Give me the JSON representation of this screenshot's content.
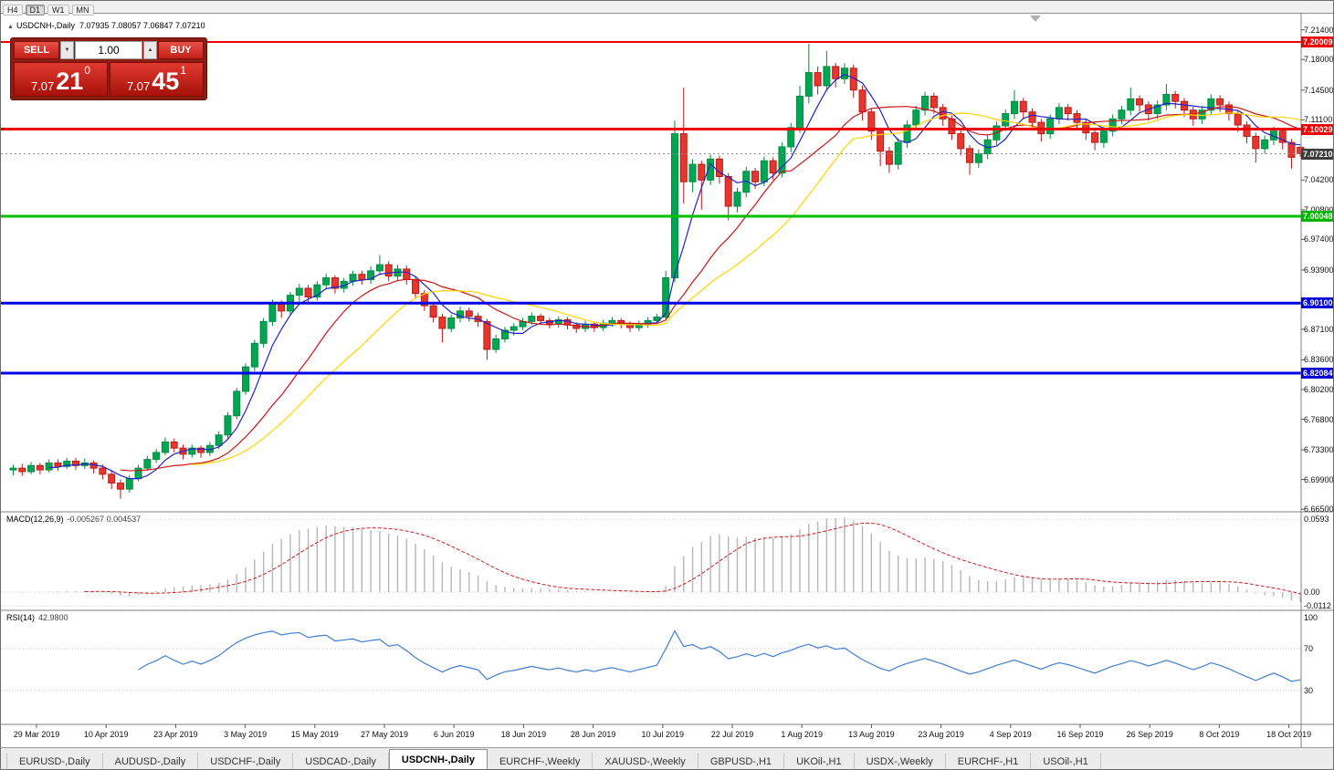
{
  "toolbar": {
    "buttons": [
      "H4",
      "D1",
      "W1",
      "MN"
    ],
    "active": "D1"
  },
  "chart_header": {
    "marker": "▲",
    "symbol": "USDCNH-,Daily",
    "ohlc": "7.07935 7.08057 7.06847 7.07210"
  },
  "trade_panel": {
    "sell_label": "SELL",
    "buy_label": "BUY",
    "volume": "1.00",
    "sell_price": {
      "big": "7.07",
      "pips": "21",
      "point": "0"
    },
    "buy_price": {
      "big": "7.07",
      "pips": "45",
      "point": "1"
    }
  },
  "price_axis": {
    "labels": [
      "7.21400",
      "7.18000",
      "7.14500",
      "7.11100",
      "7.04200",
      "7.00800",
      "6.97400",
      "6.93900",
      "6.87100",
      "6.83600",
      "6.80200",
      "6.76800",
      "6.73300",
      "6.69900",
      "6.66500"
    ],
    "badges": [
      {
        "text": "7.20009",
        "price": 7.20009,
        "color": "#ee0000"
      },
      {
        "text": "7.10029",
        "price": 7.10029,
        "color": "#ee0000"
      },
      {
        "text": "7.07210",
        "price": 7.0721,
        "color": "#3c3c3c"
      },
      {
        "text": "7.00048",
        "price": 7.00048,
        "color": "#00b400"
      },
      {
        "text": "6.90100",
        "price": 6.901,
        "color": "#0202d6"
      },
      {
        "text": "6.82084",
        "price": 6.82084,
        "color": "#0202d6"
      }
    ]
  },
  "macd_panel": {
    "name": "MACD(12,26,9)",
    "values": "-0.005267 0.004537",
    "scale": [
      {
        "text": "0.0593",
        "value": 0.0593
      },
      {
        "text": "0.00",
        "value": 0
      },
      {
        "text": "-0.0112",
        "value": -0.0112
      }
    ]
  },
  "rsi_panel": {
    "name": "RSI(14)",
    "value": "42.9800",
    "scale": [
      {
        "text": "100",
        "value": 100
      },
      {
        "text": "70",
        "value": 70
      },
      {
        "text": "30",
        "value": 30
      }
    ]
  },
  "date_axis": {
    "labels": [
      "29 Mar 2019",
      "10 Apr 2019",
      "23 Apr 2019",
      "3 May 2019",
      "15 May 2019",
      "27 May 2019",
      "6 Jun 2019",
      "18 Jun 2019",
      "28 Jun 2019",
      "10 Jul 2019",
      "22 Jul 2019",
      "1 Aug 2019",
      "13 Aug 2019",
      "23 Aug 2019",
      "4 Sep 2019",
      "16 Sep 2019",
      "26 Sep 2019",
      "8 Oct 2019",
      "18 Oct 2019"
    ]
  },
  "tabs": {
    "items": [
      "EURUSD-,Daily",
      "AUDUSD-,Daily",
      "USDCHF-,Daily",
      "USDCAD-,Daily",
      "USDCNH-,Daily",
      "EURCHF-,Weekly",
      "XAUUSD-,Weekly",
      "GBPUSD-,H1",
      "UKOil-,H1",
      "USDX-,Weekly",
      "EURCHF-,H1",
      "USOil-,H1"
    ],
    "active": "USDCNH-,Daily"
  },
  "chart_data": {
    "type": "candlestick",
    "title": "USDCNH-,Daily",
    "ylim": [
      6.665,
      7.214
    ],
    "current_price": 7.0721,
    "bull_color": "#00a651",
    "bull_border": "#008a43",
    "bear_color": "#e8352e",
    "bear_border": "#b31e18",
    "hlines": [
      {
        "price": 7.20009,
        "color": "#ee0000",
        "width": 2
      },
      {
        "price": 7.10029,
        "color": "#ee0000",
        "width": 3
      },
      {
        "price": 7.00048,
        "color": "#00c000",
        "width": 3
      },
      {
        "price": 6.901,
        "color": "#0000e6",
        "width": 3
      },
      {
        "price": 6.82084,
        "color": "#0000e6",
        "width": 3
      }
    ],
    "moving_averages": [
      {
        "period": 5,
        "color": "#2222c8"
      },
      {
        "period": 13,
        "color": "#cc1616"
      },
      {
        "period": 21,
        "color": "#ffd400"
      }
    ],
    "indicators": {
      "macd": {
        "params": [
          12,
          26,
          9
        ],
        "last": -0.005267,
        "signal_last": 0.004537,
        "ylim": [
          -0.0112,
          0.0593
        ]
      },
      "rsi": {
        "period": 14,
        "last": 42.98,
        "levels": [
          30,
          70
        ]
      }
    },
    "x_tick_labels": [
      "29 Mar 2019",
      "10 Apr 2019",
      "23 Apr 2019",
      "3 May 2019",
      "15 May 2019",
      "27 May 2019",
      "6 Jun 2019",
      "18 Jun 2019",
      "28 Jun 2019",
      "10 Jul 2019",
      "22 Jul 2019",
      "1 Aug 2019",
      "13 Aug 2019",
      "23 Aug 2019",
      "4 Sep 2019",
      "16 Sep 2019",
      "26 Sep 2019",
      "8 Oct 2019",
      "18 Oct 2019"
    ],
    "ohlc": [
      [
        6.71,
        6.716,
        6.704,
        6.712
      ],
      [
        6.712,
        6.717,
        6.703,
        6.708
      ],
      [
        6.708,
        6.719,
        6.705,
        6.715
      ],
      [
        6.715,
        6.718,
        6.705,
        6.71
      ],
      [
        6.71,
        6.722,
        6.707,
        6.718
      ],
      [
        6.718,
        6.722,
        6.709,
        6.714
      ],
      [
        6.714,
        6.724,
        6.711,
        6.72
      ],
      [
        6.72,
        6.724,
        6.71,
        6.715
      ],
      [
        6.715,
        6.723,
        6.711,
        6.718
      ],
      [
        6.718,
        6.721,
        6.706,
        6.712
      ],
      [
        6.712,
        6.716,
        6.699,
        6.705
      ],
      [
        6.705,
        6.709,
        6.688,
        6.695
      ],
      [
        6.695,
        6.699,
        6.677,
        6.688
      ],
      [
        6.688,
        6.704,
        6.684,
        6.7
      ],
      [
        6.7,
        6.716,
        6.697,
        6.712
      ],
      [
        6.712,
        6.726,
        6.709,
        6.722
      ],
      [
        6.722,
        6.734,
        6.718,
        6.73
      ],
      [
        6.73,
        6.747,
        6.727,
        6.742
      ],
      [
        6.742,
        6.746,
        6.73,
        6.735
      ],
      [
        6.735,
        6.739,
        6.722,
        6.728
      ],
      [
        6.728,
        6.739,
        6.724,
        6.735
      ],
      [
        6.735,
        6.738,
        6.724,
        6.73
      ],
      [
        6.73,
        6.742,
        6.726,
        6.738
      ],
      [
        6.738,
        6.754,
        6.734,
        6.75
      ],
      [
        6.75,
        6.776,
        6.746,
        6.772
      ],
      [
        6.772,
        6.804,
        6.768,
        6.8
      ],
      [
        6.8,
        6.832,
        6.796,
        6.828
      ],
      [
        6.828,
        6.859,
        6.823,
        6.855
      ],
      [
        6.855,
        6.884,
        6.85,
        6.88
      ],
      [
        6.88,
        6.905,
        6.875,
        6.9
      ],
      [
        6.9,
        6.904,
        6.884,
        6.892
      ],
      [
        6.892,
        6.914,
        6.888,
        6.91
      ],
      [
        6.91,
        6.923,
        6.903,
        6.918
      ],
      [
        6.918,
        6.922,
        6.901,
        6.908
      ],
      [
        6.908,
        6.926,
        6.904,
        6.922
      ],
      [
        6.922,
        6.935,
        6.917,
        6.93
      ],
      [
        6.93,
        6.933,
        6.912,
        6.918
      ],
      [
        6.918,
        6.93,
        6.913,
        6.926
      ],
      [
        6.926,
        6.938,
        6.921,
        6.934
      ],
      [
        6.934,
        6.938,
        6.922,
        6.928
      ],
      [
        6.928,
        6.943,
        6.923,
        6.938
      ],
      [
        6.938,
        6.956,
        6.933,
        6.945
      ],
      [
        6.945,
        6.949,
        6.926,
        6.932
      ],
      [
        6.932,
        6.945,
        6.927,
        6.94
      ],
      [
        6.94,
        6.944,
        6.922,
        6.928
      ],
      [
        6.928,
        6.931,
        6.906,
        6.912
      ],
      [
        6.912,
        6.916,
        6.892,
        6.898
      ],
      [
        6.898,
        6.902,
        6.879,
        6.885
      ],
      [
        6.885,
        6.889,
        6.856,
        6.872
      ],
      [
        6.872,
        6.888,
        6.868,
        6.884
      ],
      [
        6.884,
        6.897,
        6.879,
        6.892
      ],
      [
        6.892,
        6.896,
        6.88,
        6.886
      ],
      [
        6.886,
        6.89,
        6.874,
        6.88
      ],
      [
        6.88,
        6.883,
        6.836,
        6.848
      ],
      [
        6.848,
        6.865,
        6.844,
        6.86
      ],
      [
        6.86,
        6.874,
        6.856,
        6.87
      ],
      [
        6.87,
        6.878,
        6.864,
        6.874
      ],
      [
        6.874,
        6.884,
        6.87,
        6.88
      ],
      [
        6.88,
        6.89,
        6.876,
        6.886
      ],
      [
        6.886,
        6.889,
        6.876,
        6.881
      ],
      [
        6.881,
        6.884,
        6.872,
        6.877
      ],
      [
        6.877,
        6.886,
        6.873,
        6.882
      ],
      [
        6.882,
        6.885,
        6.871,
        6.876
      ],
      [
        6.876,
        6.879,
        6.867,
        6.872
      ],
      [
        6.872,
        6.881,
        6.868,
        6.877
      ],
      [
        6.877,
        6.88,
        6.868,
        6.873
      ],
      [
        6.873,
        6.882,
        6.869,
        6.878
      ],
      [
        6.878,
        6.885,
        6.874,
        6.881
      ],
      [
        6.881,
        6.884,
        6.872,
        6.877
      ],
      [
        6.877,
        6.88,
        6.868,
        6.873
      ],
      [
        6.873,
        6.881,
        6.869,
        6.877
      ],
      [
        6.877,
        6.885,
        6.873,
        6.881
      ],
      [
        6.881,
        6.889,
        6.877,
        6.885
      ],
      [
        6.885,
        6.938,
        6.881,
        6.93
      ],
      [
        6.93,
        7.11,
        6.925,
        7.095
      ],
      [
        7.095,
        7.148,
        7.015,
        7.04
      ],
      [
        7.04,
        7.066,
        7.028,
        7.06
      ],
      [
        7.06,
        7.064,
        7.008,
        7.042
      ],
      [
        7.042,
        7.071,
        7.036,
        7.066
      ],
      [
        7.066,
        7.07,
        7.038,
        7.046
      ],
      [
        7.046,
        7.05,
        6.996,
        7.012
      ],
      [
        7.012,
        7.033,
        7.005,
        7.028
      ],
      [
        7.028,
        7.057,
        7.022,
        7.052
      ],
      [
        7.052,
        7.056,
        7.032,
        7.04
      ],
      [
        7.04,
        7.069,
        7.035,
        7.064
      ],
      [
        7.064,
        7.068,
        7.042,
        7.05
      ],
      [
        7.05,
        7.085,
        7.045,
        7.08
      ],
      [
        7.08,
        7.107,
        7.074,
        7.102
      ],
      [
        7.102,
        7.15,
        7.096,
        7.138
      ],
      [
        7.138,
        7.198,
        7.13,
        7.165
      ],
      [
        7.165,
        7.172,
        7.14,
        7.15
      ],
      [
        7.15,
        7.19,
        7.144,
        7.172
      ],
      [
        7.172,
        7.176,
        7.148,
        7.158
      ],
      [
        7.158,
        7.176,
        7.152,
        7.17
      ],
      [
        7.17,
        7.174,
        7.136,
        7.145
      ],
      [
        7.145,
        7.15,
        7.11,
        7.12
      ],
      [
        7.12,
        7.124,
        7.088,
        7.098
      ],
      [
        7.098,
        7.102,
        7.058,
        7.075
      ],
      [
        7.075,
        7.08,
        7.05,
        7.06
      ],
      [
        7.06,
        7.09,
        7.054,
        7.085
      ],
      [
        7.085,
        7.11,
        7.079,
        7.105
      ],
      [
        7.105,
        7.127,
        7.099,
        7.122
      ],
      [
        7.122,
        7.143,
        7.116,
        7.138
      ],
      [
        7.138,
        7.142,
        7.118,
        7.125
      ],
      [
        7.125,
        7.129,
        7.104,
        7.112
      ],
      [
        7.112,
        7.116,
        7.088,
        7.095
      ],
      [
        7.095,
        7.099,
        7.07,
        7.078
      ],
      [
        7.078,
        7.082,
        7.048,
        7.062
      ],
      [
        7.062,
        7.077,
        7.056,
        7.072
      ],
      [
        7.072,
        7.093,
        7.066,
        7.088
      ],
      [
        7.088,
        7.109,
        7.082,
        7.104
      ],
      [
        7.104,
        7.123,
        7.098,
        7.118
      ],
      [
        7.118,
        7.145,
        7.112,
        7.132
      ],
      [
        7.132,
        7.136,
        7.112,
        7.12
      ],
      [
        7.12,
        7.124,
        7.1,
        7.108
      ],
      [
        7.108,
        7.112,
        7.086,
        7.095
      ],
      [
        7.095,
        7.117,
        7.089,
        7.112
      ],
      [
        7.112,
        7.13,
        7.106,
        7.125
      ],
      [
        7.125,
        7.129,
        7.11,
        7.118
      ],
      [
        7.118,
        7.122,
        7.1,
        7.108
      ],
      [
        7.108,
        7.112,
        7.088,
        7.096
      ],
      [
        7.096,
        7.1,
        7.076,
        7.085
      ],
      [
        7.085,
        7.103,
        7.079,
        7.098
      ],
      [
        7.098,
        7.117,
        7.092,
        7.112
      ],
      [
        7.112,
        7.127,
        7.106,
        7.122
      ],
      [
        7.122,
        7.148,
        7.116,
        7.135
      ],
      [
        7.135,
        7.139,
        7.12,
        7.128
      ],
      [
        7.128,
        7.132,
        7.11,
        7.118
      ],
      [
        7.118,
        7.133,
        7.112,
        7.128
      ],
      [
        7.128,
        7.152,
        7.122,
        7.14
      ],
      [
        7.14,
        7.144,
        7.124,
        7.132
      ],
      [
        7.132,
        7.136,
        7.114,
        7.122
      ],
      [
        7.122,
        7.126,
        7.104,
        7.112
      ],
      [
        7.112,
        7.127,
        7.106,
        7.122
      ],
      [
        7.122,
        7.14,
        7.116,
        7.135
      ],
      [
        7.135,
        7.139,
        7.12,
        7.128
      ],
      [
        7.128,
        7.132,
        7.11,
        7.118
      ],
      [
        7.118,
        7.122,
        7.097,
        7.105
      ],
      [
        7.105,
        7.109,
        7.084,
        7.092
      ],
      [
        7.092,
        7.096,
        7.062,
        7.078
      ],
      [
        7.078,
        7.093,
        7.072,
        7.088
      ],
      [
        7.088,
        7.103,
        7.082,
        7.098
      ],
      [
        7.098,
        7.102,
        7.077,
        7.085
      ],
      [
        7.085,
        7.089,
        7.055,
        7.068
      ],
      [
        7.0794,
        7.0806,
        7.0685,
        7.0721
      ]
    ]
  }
}
